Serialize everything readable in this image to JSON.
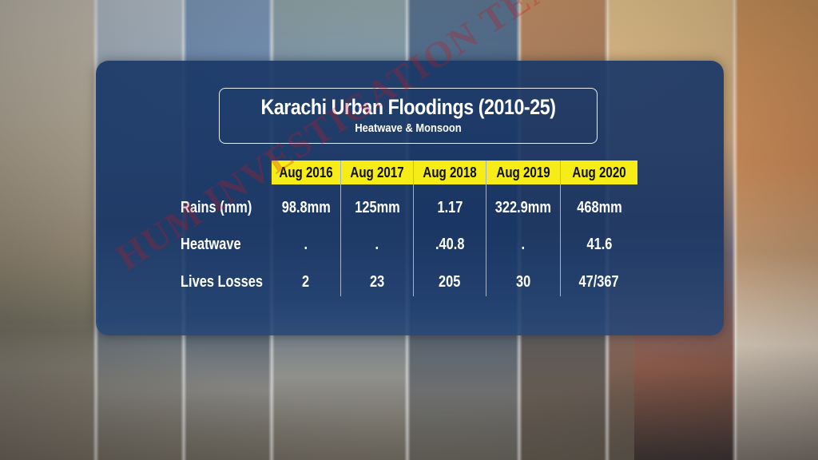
{
  "title": "Karachi Urban Floodings (2010-25)",
  "subtitle": "Heatwave & Monsoon",
  "watermark": "HUM INVESTIGATION TEAM",
  "colors": {
    "panel": "#1b3968",
    "header_fill": "#f6ec18",
    "text": "#ffffff",
    "watermark": "#c8141e"
  },
  "table": {
    "columns": [
      "Aug 2016",
      "Aug 2017",
      "Aug 2018",
      "Aug 2019",
      "Aug 2020"
    ],
    "rows": [
      {
        "label": "Rains (mm)",
        "values": [
          "98.8mm",
          "125mm",
          "1.17",
          "322.9mm",
          "468mm"
        ]
      },
      {
        "label": "Heatwave",
        "values": [
          ".",
          ".",
          ".40.8",
          ".",
          "41.6"
        ]
      },
      {
        "label": "Lives Losses",
        "values": [
          "2",
          "23",
          "205",
          "30",
          "47/367"
        ]
      }
    ]
  }
}
